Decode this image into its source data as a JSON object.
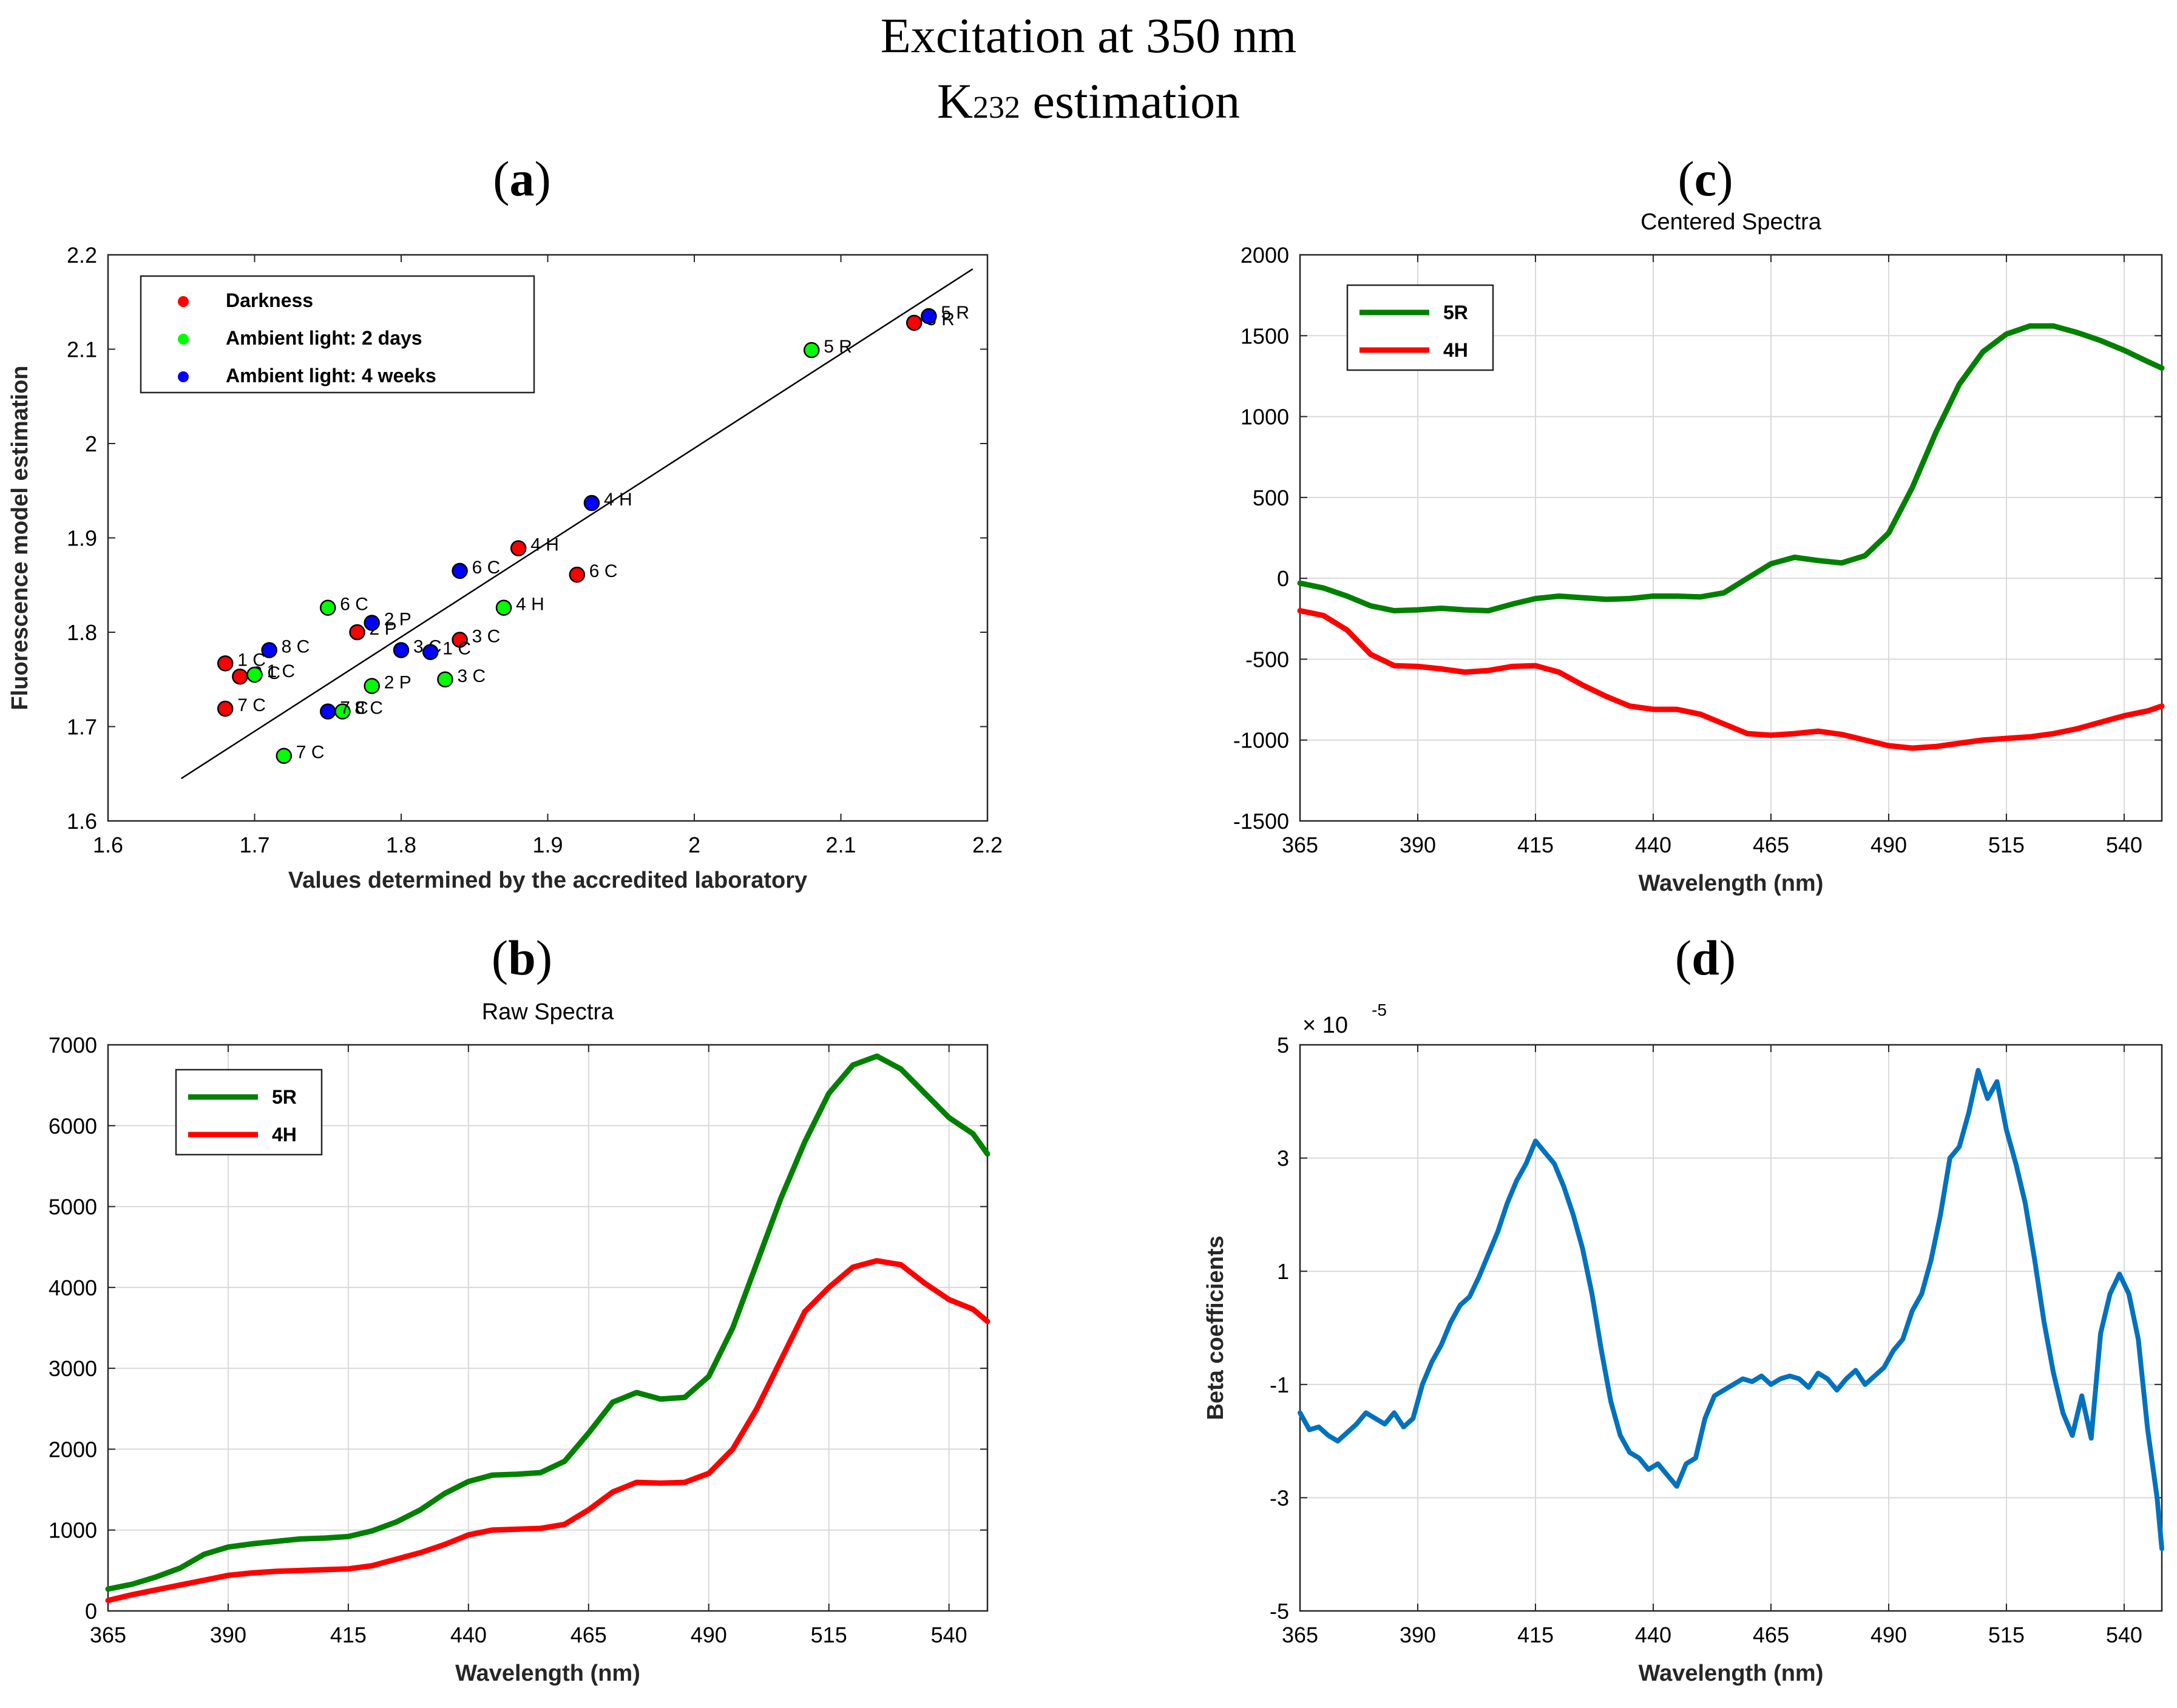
{
  "figure": {
    "title_line1": "Excitation at 350 nm",
    "title_line2_prefix": "K",
    "title_line2_sub": "232",
    "title_line2_suffix": " estimation",
    "panel_labels": [
      "a",
      "b",
      "c",
      "d"
    ]
  },
  "colors": {
    "darkness": "#ff0000",
    "ambient2d": "#00ff00",
    "ambient4w": "#0000ff",
    "green_line": "#008000",
    "red_line": "#ff0000",
    "blue_line": "#0072bd",
    "grid": "#d9d9d9"
  },
  "chart_data": [
    {
      "id": "a",
      "type": "scatter",
      "title": "",
      "xlabel": "Values determined by the accredited laboratory",
      "ylabel": "Fluorescence model estimation",
      "xlim": [
        1.6,
        2.2
      ],
      "ylim": [
        1.6,
        2.2
      ],
      "xticks": [
        1.6,
        1.7,
        1.8,
        1.9,
        2,
        2.1,
        2.2
      ],
      "yticks": [
        1.6,
        1.7,
        1.8,
        1.9,
        2,
        2.1,
        2.2
      ],
      "xtick_labels": [
        "1.6",
        "1.7",
        "1.8",
        "1.9",
        "2",
        "2.1",
        "2.2"
      ],
      "ytick_labels": [
        "1.6",
        "1.7",
        "1.8",
        "1.9",
        "2",
        "2.1",
        "2.2"
      ],
      "grid": false,
      "legend_position": "top-left",
      "fit_line": {
        "x": [
          1.65,
          2.19
        ],
        "y": [
          1.645,
          2.185
        ]
      },
      "series": [
        {
          "name": "Darkness",
          "color_key": "darkness",
          "points": [
            {
              "x": 1.68,
              "y": 1.767,
              "label": "1 C"
            },
            {
              "x": 1.69,
              "y": 1.753,
              "label": "8 C"
            },
            {
              "x": 1.68,
              "y": 1.719,
              "label": "7 C"
            },
            {
              "x": 1.77,
              "y": 1.8,
              "label": "2 P"
            },
            {
              "x": 1.84,
              "y": 1.792,
              "label": "3 C"
            },
            {
              "x": 1.88,
              "y": 1.889,
              "label": "4 H"
            },
            {
              "x": 1.92,
              "y": 1.861,
              "label": "6 C"
            },
            {
              "x": 2.15,
              "y": 2.128,
              "label": "5 R"
            }
          ]
        },
        {
          "name": "Ambient light: 2 days",
          "color_key": "ambient2d",
          "points": [
            {
              "x": 1.7,
              "y": 1.755,
              "label": "1 C"
            },
            {
              "x": 1.75,
              "y": 1.826,
              "label": "6 C"
            },
            {
              "x": 1.76,
              "y": 1.716,
              "label": "8 C"
            },
            {
              "x": 1.72,
              "y": 1.669,
              "label": "7 C"
            },
            {
              "x": 1.78,
              "y": 1.743,
              "label": "2 P"
            },
            {
              "x": 1.83,
              "y": 1.75,
              "label": "3 C"
            },
            {
              "x": 1.87,
              "y": 1.826,
              "label": "4 H"
            },
            {
              "x": 2.08,
              "y": 2.099,
              "label": "5 R"
            }
          ]
        },
        {
          "name": "Ambient light: 4 weeks",
          "color_key": "ambient4w",
          "points": [
            {
              "x": 1.71,
              "y": 1.781,
              "label": "8 C"
            },
            {
              "x": 1.75,
              "y": 1.716,
              "label": "7 C"
            },
            {
              "x": 1.78,
              "y": 1.81,
              "label": "2 P"
            },
            {
              "x": 1.8,
              "y": 1.781,
              "label": "3 C"
            },
            {
              "x": 1.82,
              "y": 1.779,
              "label": "1 C"
            },
            {
              "x": 1.84,
              "y": 1.865,
              "label": "6 C"
            },
            {
              "x": 1.93,
              "y": 1.937,
              "label": "4 H"
            },
            {
              "x": 2.16,
              "y": 2.135,
              "label": "5 R"
            }
          ]
        }
      ]
    },
    {
      "id": "b",
      "type": "line",
      "title": "Raw Spectra",
      "xlabel": "Wavelength (nm)",
      "ylabel": "",
      "xlim": [
        365,
        548
      ],
      "ylim": [
        0,
        7000
      ],
      "xticks": [
        365,
        390,
        415,
        440,
        465,
        490,
        515,
        540
      ],
      "yticks": [
        0,
        1000,
        2000,
        3000,
        4000,
        5000,
        6000,
        7000
      ],
      "xtick_labels": [
        "365",
        "390",
        "415",
        "440",
        "465",
        "490",
        "515",
        "540"
      ],
      "ytick_labels": [
        "0",
        "1000",
        "2000",
        "3000",
        "4000",
        "5000",
        "6000",
        "7000"
      ],
      "grid": true,
      "legend_position": "top-left",
      "x": [
        365,
        370,
        375,
        380,
        385,
        390,
        395,
        400,
        405,
        410,
        415,
        420,
        425,
        430,
        435,
        440,
        445,
        450,
        455,
        460,
        465,
        470,
        475,
        480,
        485,
        490,
        495,
        500,
        505,
        510,
        515,
        520,
        525,
        530,
        535,
        540,
        545,
        548
      ],
      "series": [
        {
          "name": "5R",
          "color_key": "green_line",
          "values": [
            270,
            330,
            420,
            530,
            700,
            790,
            830,
            860,
            890,
            900,
            920,
            990,
            1100,
            1250,
            1450,
            1600,
            1680,
            1690,
            1710,
            1850,
            2200,
            2580,
            2700,
            2620,
            2640,
            2900,
            3500,
            4300,
            5100,
            5800,
            6400,
            6750,
            6860,
            6700,
            6400,
            6100,
            5900,
            5650
          ]
        },
        {
          "name": "4H",
          "color_key": "red_line",
          "values": [
            130,
            200,
            260,
            320,
            380,
            440,
            470,
            490,
            500,
            510,
            520,
            560,
            640,
            720,
            820,
            940,
            1000,
            1010,
            1020,
            1070,
            1250,
            1470,
            1590,
            1580,
            1590,
            1700,
            2000,
            2500,
            3100,
            3700,
            4000,
            4250,
            4330,
            4280,
            4050,
            3850,
            3730,
            3580
          ]
        }
      ]
    },
    {
      "id": "c",
      "type": "line",
      "title": "Centered Spectra",
      "xlabel": "Wavelength (nm)",
      "ylabel": "",
      "xlim": [
        365,
        548
      ],
      "ylim": [
        -1500,
        2000
      ],
      "xticks": [
        365,
        390,
        415,
        440,
        465,
        490,
        515,
        540
      ],
      "yticks": [
        -1500,
        -1000,
        -500,
        0,
        500,
        1000,
        1500,
        2000
      ],
      "xtick_labels": [
        "365",
        "390",
        "415",
        "440",
        "465",
        "490",
        "515",
        "540"
      ],
      "ytick_labels": [
        "-1500",
        "-1000",
        "-500",
        "0",
        "500",
        "1000",
        "1500",
        "2000"
      ],
      "grid": true,
      "legend_position": "top-left",
      "x": [
        365,
        370,
        375,
        380,
        385,
        390,
        395,
        400,
        405,
        410,
        415,
        420,
        425,
        430,
        435,
        440,
        445,
        450,
        455,
        460,
        465,
        470,
        475,
        480,
        485,
        490,
        495,
        500,
        505,
        510,
        515,
        520,
        525,
        530,
        535,
        540,
        545,
        548
      ],
      "series": [
        {
          "name": "5R",
          "color_key": "green_line",
          "values": [
            -30,
            -60,
            -110,
            -170,
            -200,
            -195,
            -185,
            -195,
            -200,
            -160,
            -125,
            -110,
            -120,
            -130,
            -125,
            -110,
            -110,
            -115,
            -90,
            0,
            90,
            130,
            110,
            95,
            140,
            280,
            560,
            900,
            1200,
            1400,
            1510,
            1560,
            1560,
            1520,
            1470,
            1410,
            1340,
            1300
          ]
        },
        {
          "name": "4H",
          "color_key": "red_line",
          "values": [
            -200,
            -230,
            -320,
            -470,
            -540,
            -545,
            -560,
            -580,
            -570,
            -545,
            -540,
            -580,
            -660,
            -730,
            -790,
            -810,
            -810,
            -840,
            -900,
            -960,
            -970,
            -960,
            -945,
            -965,
            -1000,
            -1035,
            -1050,
            -1040,
            -1020,
            -1000,
            -990,
            -980,
            -960,
            -930,
            -890,
            -850,
            -820,
            -790
          ]
        }
      ]
    },
    {
      "id": "d",
      "type": "line",
      "title": "",
      "xlabel": "Wavelength (nm)",
      "ylabel": "Beta coefficients",
      "scale_times": "× 10",
      "scale_exp": "-5",
      "xlim": [
        365,
        548
      ],
      "ylim": [
        -5,
        5
      ],
      "xticks": [
        365,
        390,
        415,
        440,
        465,
        490,
        515,
        540
      ],
      "yticks": [
        -5,
        -3,
        -1,
        1,
        3,
        5
      ],
      "xtick_labels": [
        "365",
        "390",
        "415",
        "440",
        "465",
        "490",
        "515",
        "540"
      ],
      "ytick_labels": [
        "-5",
        "-3",
        "-1",
        "1",
        "3",
        "5"
      ],
      "grid": true,
      "x": [
        365,
        367,
        369,
        371,
        373,
        375,
        377,
        379,
        381,
        383,
        385,
        387,
        389,
        391,
        393,
        395,
        397,
        399,
        401,
        403,
        405,
        407,
        409,
        411,
        413,
        415,
        417,
        419,
        421,
        423,
        425,
        427,
        429,
        431,
        433,
        435,
        437,
        439,
        441,
        443,
        445,
        447,
        449,
        451,
        453,
        455,
        457,
        459,
        461,
        463,
        465,
        467,
        469,
        471,
        473,
        475,
        477,
        479,
        481,
        483,
        485,
        487,
        489,
        491,
        493,
        495,
        497,
        499,
        501,
        503,
        505,
        507,
        509,
        511,
        513,
        515,
        517,
        519,
        521,
        523,
        525,
        527,
        529,
        531,
        533,
        535,
        537,
        539,
        541,
        543,
        545,
        547,
        548
      ],
      "series": [
        {
          "name": "beta",
          "color_key": "blue_line",
          "values": [
            -1.5,
            -1.8,
            -1.75,
            -1.9,
            -2.0,
            -1.85,
            -1.7,
            -1.5,
            -1.6,
            -1.7,
            -1.5,
            -1.75,
            -1.6,
            -1.0,
            -0.6,
            -0.3,
            0.1,
            0.4,
            0.55,
            0.9,
            1.3,
            1.7,
            2.2,
            2.6,
            2.9,
            3.3,
            3.1,
            2.9,
            2.5,
            2.0,
            1.4,
            0.6,
            -0.4,
            -1.3,
            -1.9,
            -2.2,
            -2.3,
            -2.5,
            -2.4,
            -2.6,
            -2.8,
            -2.4,
            -2.3,
            -1.6,
            -1.2,
            -1.1,
            -1.0,
            -0.9,
            -0.95,
            -0.85,
            -1.0,
            -0.9,
            -0.85,
            -0.9,
            -1.05,
            -0.8,
            -0.9,
            -1.1,
            -0.9,
            -0.75,
            -1.0,
            -0.85,
            -0.7,
            -0.4,
            -0.2,
            0.3,
            0.6,
            1.2,
            2.0,
            3.0,
            3.2,
            3.8,
            4.55,
            4.05,
            4.35,
            3.5,
            2.9,
            2.2,
            1.2,
            0.1,
            -0.8,
            -1.5,
            -1.9,
            -1.2,
            -1.95,
            -0.1,
            0.6,
            0.95,
            0.6,
            -0.2,
            -1.8,
            -3.0,
            -3.9
          ]
        }
      ]
    }
  ]
}
